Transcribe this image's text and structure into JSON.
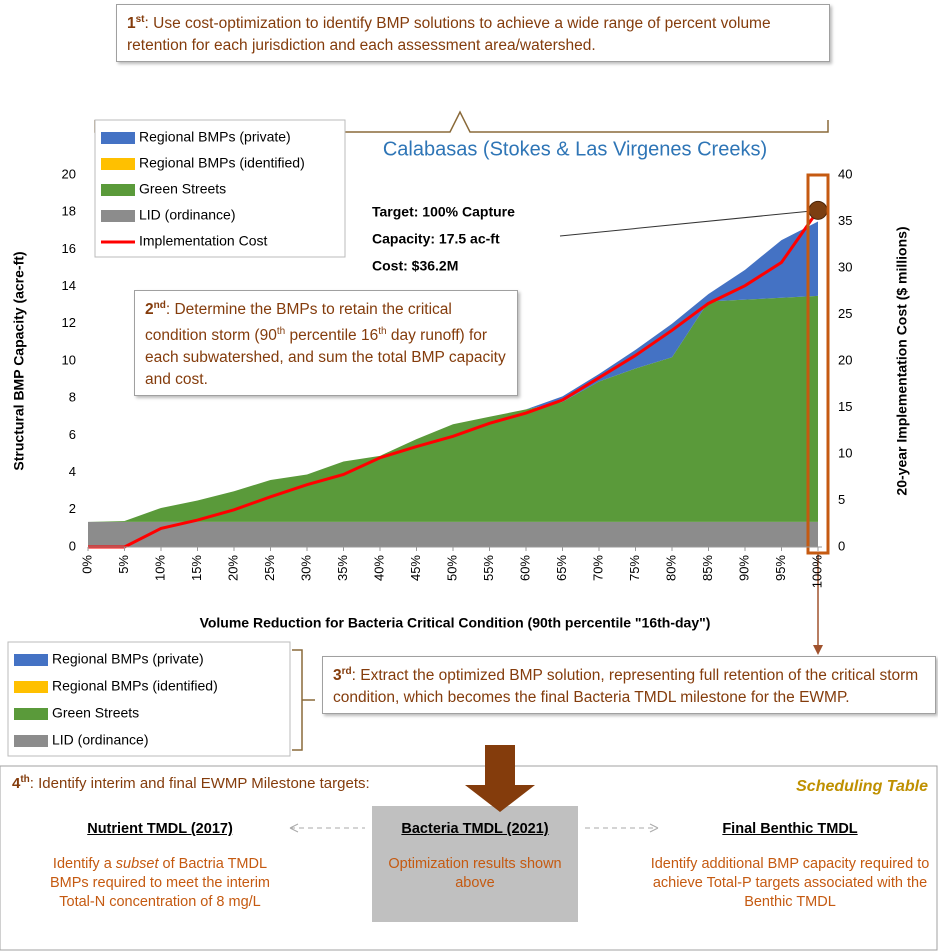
{
  "chart_data": {
    "type": "stacked_area",
    "title": "Calabasas (Stokes & Las Virgenes Creeks)",
    "x_label": "Volume Reduction for Bacteria Critical Condition (90th percentile \"16th-day\")",
    "y_label": "Structural BMP Capacity (acre-ft)",
    "y2_label": "20-year Implementation Cost ($ millions)",
    "x": [
      0,
      5,
      10,
      15,
      20,
      25,
      30,
      35,
      40,
      45,
      50,
      55,
      60,
      65,
      70,
      75,
      80,
      85,
      90,
      95,
      100
    ],
    "xlim": [
      0,
      100
    ],
    "xticks": [
      {
        "value": 0,
        "label": "0%"
      },
      {
        "value": 5,
        "label": "5%"
      },
      {
        "value": 10,
        "label": "10%"
      },
      {
        "value": 15,
        "label": "15%"
      },
      {
        "value": 20,
        "label": "20%"
      },
      {
        "value": 25,
        "label": "25%"
      },
      {
        "value": 30,
        "label": "30%"
      },
      {
        "value": 35,
        "label": "35%"
      },
      {
        "value": 40,
        "label": "40%"
      },
      {
        "value": 45,
        "label": "45%"
      },
      {
        "value": 50,
        "label": "50%"
      },
      {
        "value": 55,
        "label": "55%"
      },
      {
        "value": 60,
        "label": "60%"
      },
      {
        "value": 65,
        "label": "65%"
      },
      {
        "value": 70,
        "label": "70%"
      },
      {
        "value": 75,
        "label": "75%"
      },
      {
        "value": 80,
        "label": "80%"
      },
      {
        "value": 85,
        "label": "85%"
      },
      {
        "value": 90,
        "label": "90%"
      },
      {
        "value": 95,
        "label": "95%"
      },
      {
        "value": 100,
        "label": "100%"
      }
    ],
    "ylim": [
      0,
      20
    ],
    "yticks": [
      0,
      2,
      4,
      6,
      8,
      10,
      12,
      14,
      16,
      18,
      20
    ],
    "y2lim": [
      0,
      40
    ],
    "y2ticks": [
      0,
      5,
      10,
      15,
      20,
      25,
      30,
      35,
      40
    ],
    "series": [
      {
        "name": "Regional BMPs (private)",
        "color": "#4472c4",
        "values": [
          0,
          0,
          0,
          0,
          0,
          0,
          0,
          0,
          0,
          0,
          0,
          0,
          0,
          0.3,
          0.4,
          1.0,
          1.8,
          0.4,
          1.6,
          3.1,
          4.0
        ]
      },
      {
        "name": "Regional BMPs (identified)",
        "color": "#ffc000",
        "values": [
          0,
          0,
          0,
          0,
          0,
          0,
          0,
          0,
          0,
          0,
          0,
          0,
          0,
          0,
          0,
          0,
          0,
          0,
          0,
          0,
          0
        ]
      },
      {
        "name": "Green Streets",
        "color": "#5a9a3a",
        "values": [
          0,
          0.05,
          0.75,
          1.15,
          1.65,
          2.25,
          2.55,
          3.25,
          3.55,
          4.45,
          5.25,
          5.65,
          6.05,
          6.45,
          7.55,
          8.25,
          8.85,
          11.85,
          11.95,
          12.05,
          12.15
        ]
      },
      {
        "name": "LID (ordinance)",
        "color": "#8c8c8c",
        "values": [
          1.35,
          1.35,
          1.35,
          1.35,
          1.35,
          1.35,
          1.35,
          1.35,
          1.35,
          1.35,
          1.35,
          1.35,
          1.35,
          1.35,
          1.35,
          1.35,
          1.35,
          1.35,
          1.35,
          1.35,
          1.35
        ]
      },
      {
        "name": "Implementation Cost",
        "color": "#ff0000",
        "axis": "y2",
        "values": [
          0,
          0,
          2.0,
          2.9,
          4.0,
          5.4,
          6.7,
          7.8,
          9.6,
          10.8,
          11.9,
          13.3,
          14.4,
          15.8,
          18.2,
          20.6,
          23.3,
          26.2,
          28.1,
          30.6,
          36.2
        ]
      }
    ],
    "callout": [
      "Target: 100% Capture",
      "Capacity: 17.5 ac-ft",
      "Cost: $36.2M"
    ]
  },
  "steps": {
    "first": [
      "1",
      "st",
      ": Use cost-optimization to identify BMP solutions to achieve a wide range of percent volume retention for each jurisdiction and each assessment area/watershed."
    ],
    "second": [
      "2",
      "nd",
      ": Determine the BMPs to retain the critical condition storm (90",
      "th",
      " percentile 16",
      "th",
      " day runoff) for each subwatershed, and sum the total BMP capacity and cost."
    ],
    "third": [
      "3",
      "rd",
      ": Extract the optimized BMP solution, representing full retention of the critical storm condition, which becomes the final Bacteria TMDL milestone for the EWMP."
    ],
    "fourth": [
      "4",
      "th",
      ": Identify interim and final EWMP Milestone targets:"
    ]
  },
  "schedule": {
    "title": "Scheduling Table",
    "columns": [
      {
        "header": "Nutrient TMDL (2017)",
        "text": [
          "Identify a ",
          "subset",
          " of Bactria TMDL BMPs required to meet the interim Total-N concentration of 8 mg/L"
        ]
      },
      {
        "header": "Bacteria TMDL (2021)",
        "text": [
          "Optimization results shown above"
        ]
      },
      {
        "header": "Final Benthic TMDL",
        "text": [
          "Identify additional BMP capacity required to achieve Total-P targets associated with the Benthic TMDL"
        ]
      }
    ]
  }
}
